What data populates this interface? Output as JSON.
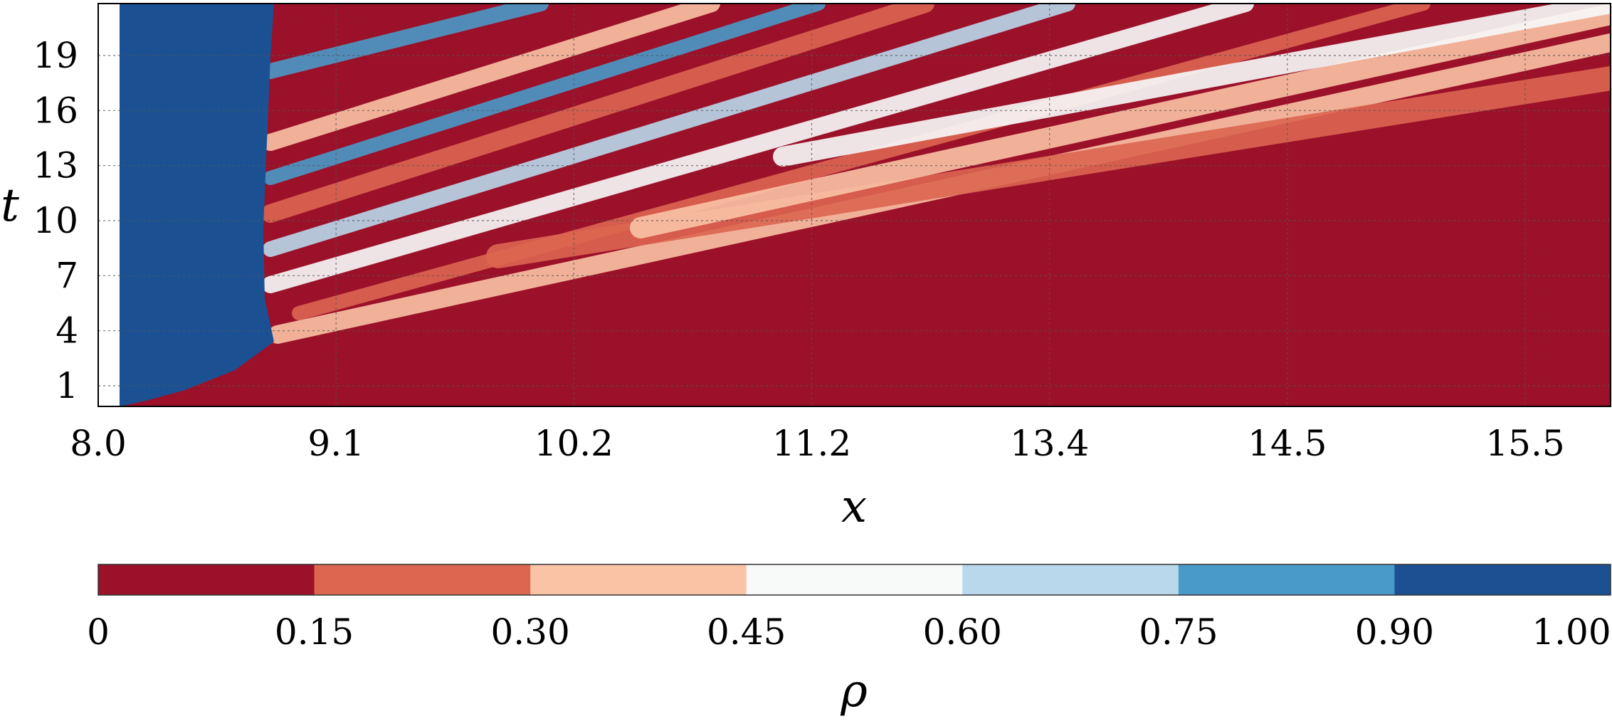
{
  "chart_data": {
    "type": "heatmap",
    "xlabel": "x",
    "ylabel": "t",
    "x_ticks": [
      "8.0",
      "9.1",
      "10.2",
      "11.2",
      "13.4",
      "14.5",
      "15.5"
    ],
    "y_ticks": [
      "1",
      "4",
      "7",
      "10",
      "13",
      "16",
      "19"
    ],
    "grid": true,
    "colorbar": {
      "label": "ρ",
      "placement": "bottom",
      "levels": [
        0,
        0.15,
        0.3,
        0.45,
        0.6,
        0.75,
        0.9,
        1.0
      ],
      "tick_labels": [
        "0",
        "0.15",
        "0.30",
        "0.45",
        "0.60",
        "0.75",
        "0.90",
        "1.00"
      ],
      "colors": [
        "#9b1129",
        "#dd6651",
        "#fbc3a6",
        "#f8fafa",
        "#b9d8ec",
        "#4a9ac9",
        "#1b5193"
      ]
    },
    "regions": {
      "left_edge": "white",
      "jammed_region": "#1b5193",
      "free_flow_region": "#9b1129"
    }
  }
}
